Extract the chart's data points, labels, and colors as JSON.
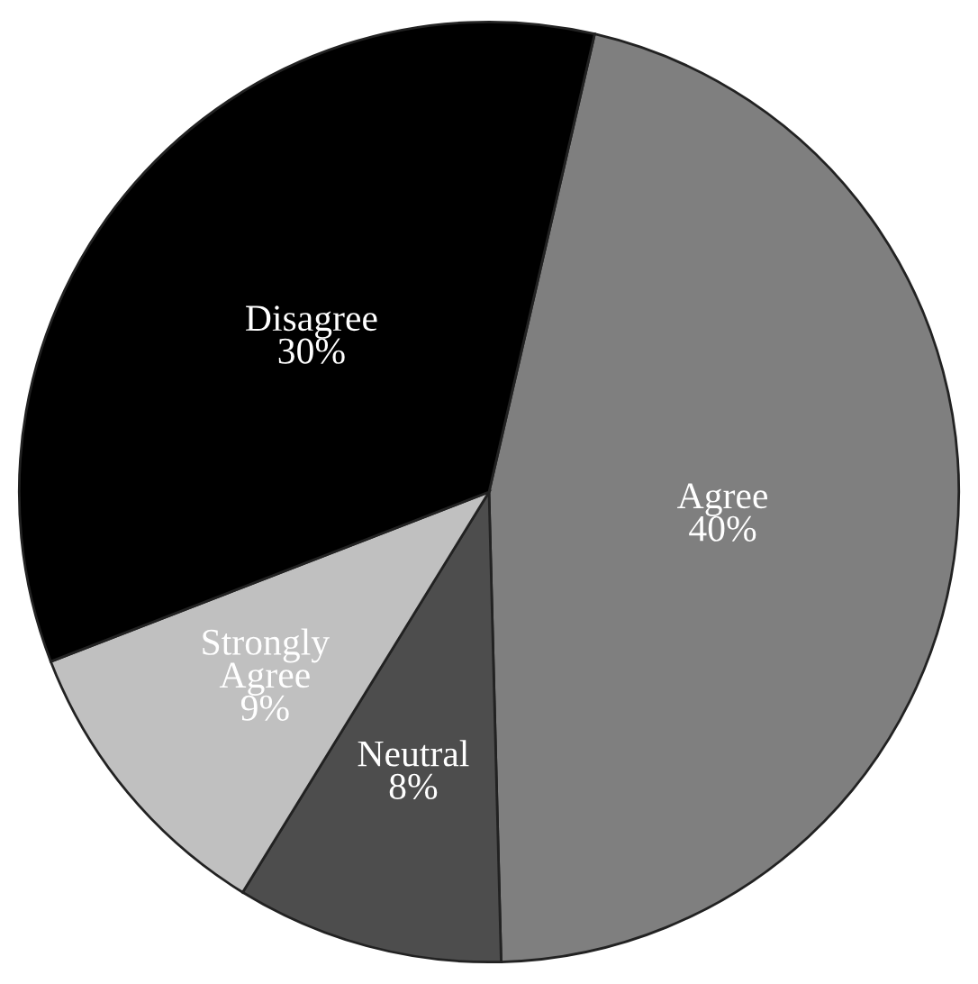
{
  "chart_data": {
    "type": "pie",
    "categories": [
      "Agree",
      "Neutral",
      "Strongly Agree",
      "Disagree"
    ],
    "values": [
      40,
      8,
      9,
      30
    ],
    "value_labels": [
      "40%",
      "8%",
      "9%",
      "30%"
    ],
    "colors": [
      "#7f7f7f",
      "#4d4d4d",
      "#c0c0c0",
      "#000000"
    ],
    "legend": false
  }
}
